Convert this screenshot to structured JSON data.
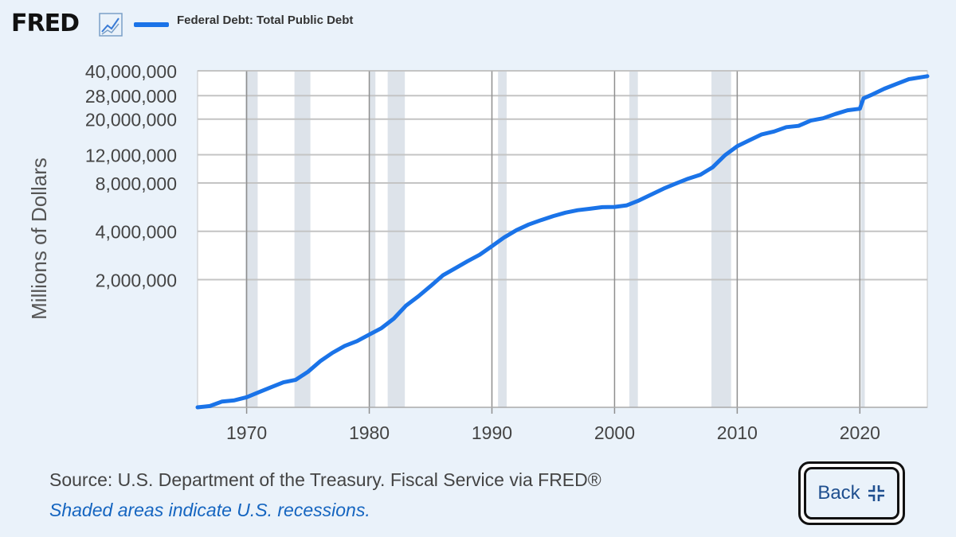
{
  "header": {
    "logo": "FRED",
    "logo_icon": "trend-chart-icon",
    "legend_label": "Federal Debt: Total Public Debt",
    "legend_color": "#1a73e8"
  },
  "footer": {
    "source": "Source: U.S. Department of the Treasury. Fiscal Service via FRED®",
    "note": "Shaded areas indicate U.S. recessions."
  },
  "back_button": {
    "label": "Back",
    "icon": "collapse-icon"
  },
  "chart_data": {
    "type": "line",
    "ylabel": "Millions of Dollars",
    "xlabel": "",
    "y_scale": "log",
    "xlim": [
      1966.0,
      2025.5
    ],
    "ylim": [
      320000,
      40000000
    ],
    "y_ticks": [
      {
        "value": 2000000,
        "label": "2,000,000"
      },
      {
        "value": 4000000,
        "label": "4,000,000"
      },
      {
        "value": 8000000,
        "label": "8,000,000"
      },
      {
        "value": 12000000,
        "label": "12,000,000"
      },
      {
        "value": 20000000,
        "label": "20,000,000"
      },
      {
        "value": 28000000,
        "label": "28,000,000"
      },
      {
        "value": 40000000,
        "label": "40,000,000"
      }
    ],
    "x_ticks": [
      {
        "value": 1970,
        "label": "1970"
      },
      {
        "value": 1980,
        "label": "1980"
      },
      {
        "value": 1990,
        "label": "1990"
      },
      {
        "value": 2000,
        "label": "2000"
      },
      {
        "value": 2010,
        "label": "2010"
      },
      {
        "value": 2020,
        "label": "2020"
      }
    ],
    "recessions": [
      [
        1969.9,
        1970.9
      ],
      [
        1973.9,
        1975.2
      ],
      [
        1980.0,
        1980.5
      ],
      [
        1981.5,
        1982.9
      ],
      [
        1990.5,
        1991.2
      ],
      [
        2001.2,
        2001.9
      ],
      [
        2007.9,
        2009.5
      ],
      [
        2020.1,
        2020.4
      ]
    ],
    "series": [
      {
        "color": "#1a73e8",
        "x": [
          1966.0,
          1967.0,
          1968.0,
          1969.0,
          1970.0,
          1971.0,
          1972.0,
          1973.0,
          1974.0,
          1975.0,
          1976.0,
          1977.0,
          1978.0,
          1979.0,
          1980.0,
          1981.0,
          1982.0,
          1983.0,
          1984.0,
          1985.0,
          1986.0,
          1987.0,
          1988.0,
          1989.0,
          1990.0,
          1991.0,
          1992.0,
          1993.0,
          1994.0,
          1995.0,
          1996.0,
          1997.0,
          1998.0,
          1999.0,
          2000.0,
          2001.0,
          2002.0,
          2003.0,
          2004.0,
          2005.0,
          2006.0,
          2007.0,
          2008.0,
          2009.0,
          2010.0,
          2011.0,
          2012.0,
          2013.0,
          2014.0,
          2015.0,
          2016.0,
          2017.0,
          2018.0,
          2019.0,
          2020.0,
          2020.3,
          2021.0,
          2022.0,
          2023.0,
          2024.0,
          2025.5
        ],
        "values": [
          320000,
          326000,
          348000,
          354000,
          370000,
          398000,
          427000,
          458000,
          475000,
          533000,
          620000,
          699000,
          772000,
          827000,
          908000,
          998000,
          1142000,
          1377000,
          1572000,
          1823000,
          2125000,
          2350000,
          2602000,
          2857000,
          3233000,
          3665000,
          4065000,
          4411000,
          4693000,
          4974000,
          5225000,
          5413000,
          5526000,
          5656000,
          5674000,
          5807000,
          6228000,
          6783000,
          7379000,
          7933000,
          8507000,
          9008000,
          10025000,
          11910000,
          13562000,
          14790000,
          16066000,
          16738000,
          17824000,
          18151000,
          19573000,
          20245000,
          21516000,
          22719000,
          23201000,
          26945000,
          28430000,
          30929000,
          33167000,
          35465000,
          37000000
        ]
      }
    ]
  }
}
